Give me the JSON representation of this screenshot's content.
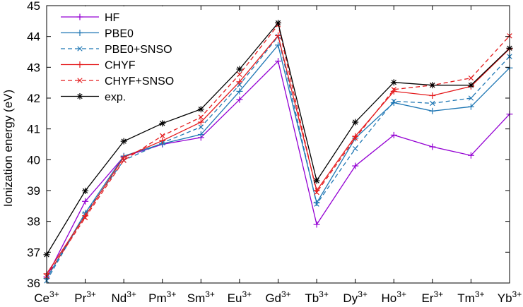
{
  "chart_data": {
    "type": "line",
    "title": "",
    "xlabel": "",
    "ylabel": "Ionization energy (eV)",
    "ylim": [
      36,
      45
    ],
    "yticks": [
      36,
      37,
      38,
      39,
      40,
      41,
      42,
      43,
      44,
      45
    ],
    "grid": false,
    "legend_position": "top-left",
    "categories": [
      {
        "base": "Ce",
        "sup": "3+"
      },
      {
        "base": "Pr",
        "sup": "3+"
      },
      {
        "base": "Nd",
        "sup": "3+"
      },
      {
        "base": "Pm",
        "sup": "3+"
      },
      {
        "base": "Sm",
        "sup": "3+"
      },
      {
        "base": "Eu",
        "sup": "3+"
      },
      {
        "base": "Gd",
        "sup": "3+"
      },
      {
        "base": "Tb",
        "sup": "3+"
      },
      {
        "base": "Dy",
        "sup": "3+"
      },
      {
        "base": "Ho",
        "sup": "3+"
      },
      {
        "base": "Er",
        "sup": "3+"
      },
      {
        "base": "Tm",
        "sup": "3+"
      },
      {
        "base": "Yb",
        "sup": "3+"
      }
    ],
    "series": [
      {
        "name": "HF",
        "color": "#9400d3",
        "dash": "solid",
        "marker": "plus",
        "values": [
          36.2,
          38.65,
          40.1,
          40.5,
          40.72,
          41.95,
          43.2,
          37.9,
          39.8,
          40.8,
          40.42,
          40.14,
          41.48
        ]
      },
      {
        "name": "PBE0",
        "color": "#1f77b4",
        "dash": "solid",
        "marker": "plus",
        "values": [
          36.15,
          38.27,
          40.12,
          40.52,
          40.82,
          42.22,
          43.72,
          38.6,
          40.7,
          41.85,
          41.58,
          41.72,
          42.98
        ]
      },
      {
        "name": "PBE0+SNSO",
        "color": "#1f77b4",
        "dash": "dashed",
        "marker": "x",
        "values": [
          36.07,
          38.25,
          39.98,
          40.55,
          41.06,
          42.43,
          44.0,
          38.56,
          40.36,
          41.9,
          41.83,
          42.0,
          43.35
        ]
      },
      {
        "name": "CHYF",
        "color": "#e41a1c",
        "dash": "solid",
        "marker": "plus",
        "values": [
          36.3,
          38.18,
          40.08,
          40.62,
          41.22,
          42.53,
          44.03,
          39.0,
          40.76,
          42.22,
          42.08,
          42.38,
          43.6
        ]
      },
      {
        "name": "CHYF+SNSO",
        "color": "#e41a1c",
        "dash": "dashed",
        "marker": "x",
        "values": [
          36.22,
          38.12,
          39.98,
          40.78,
          41.38,
          42.77,
          44.38,
          38.94,
          40.7,
          42.28,
          42.42,
          42.65,
          44.02
        ]
      },
      {
        "name": "exp.",
        "color": "#000000",
        "dash": "solid",
        "marker": "star",
        "values": [
          36.92,
          38.99,
          40.6,
          41.18,
          41.64,
          42.94,
          44.44,
          39.32,
          41.22,
          42.51,
          42.42,
          42.42,
          43.62
        ]
      }
    ]
  }
}
